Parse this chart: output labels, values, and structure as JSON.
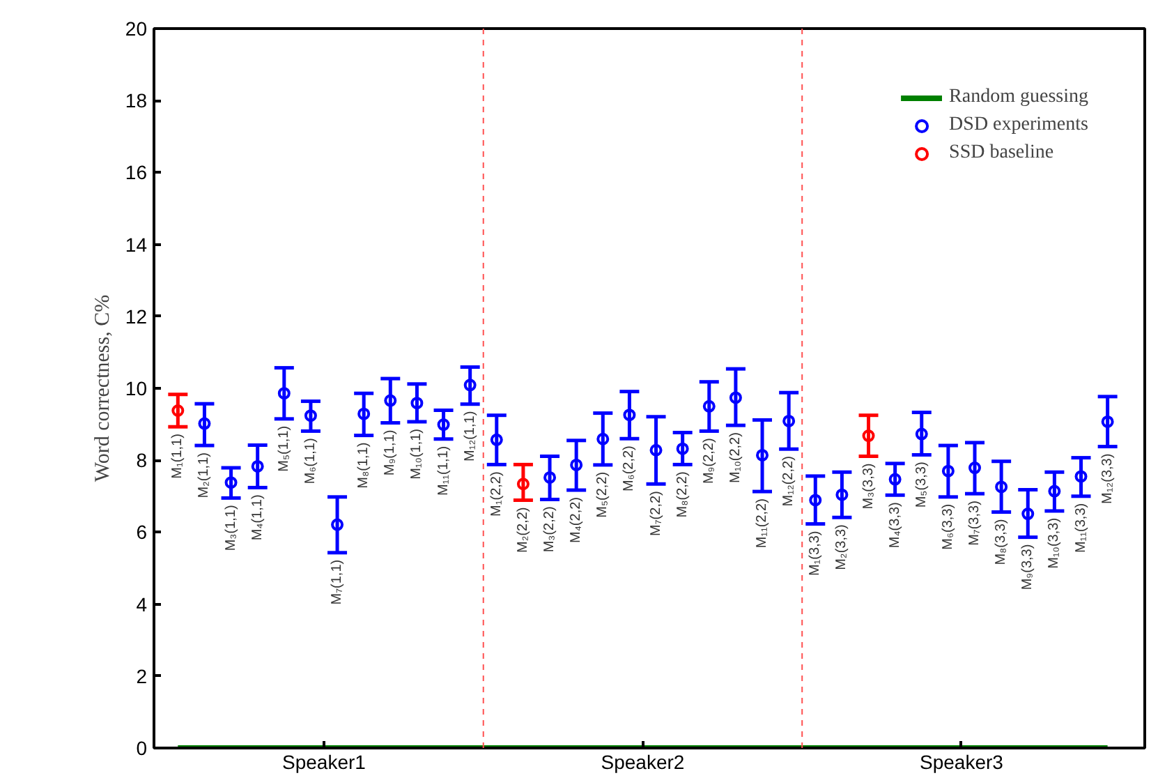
{
  "chart_data": {
    "type": "scatter",
    "ylabel": "Word correctness, C%",
    "categories": [
      null,
      null,
      null,
      null,
      null,
      null,
      null,
      null,
      null,
      null,
      null,
      null,
      null,
      null,
      null,
      null,
      null,
      null,
      null,
      null,
      null,
      null,
      null,
      null,
      null,
      null,
      null,
      null,
      null,
      null,
      null,
      null,
      null,
      null,
      null,
      null
    ],
    "ylim": [
      0,
      20
    ],
    "yticks": [
      0,
      2,
      4,
      6,
      8,
      10,
      12,
      14,
      16,
      18,
      20
    ],
    "series": [
      {
        "name": "Random guessing",
        "type": "line",
        "color": "#008000",
        "values": [
          0,
          0,
          0,
          0,
          0,
          0,
          0,
          0,
          0,
          0,
          0,
          0,
          0,
          0,
          0,
          0,
          0,
          0,
          0,
          0,
          0,
          0,
          0,
          0,
          0,
          0,
          0,
          0,
          0,
          0,
          0,
          0,
          0,
          0,
          0,
          0
        ]
      },
      {
        "name": "DSD experiments",
        "color": "#0000ff",
        "marker": "circle",
        "values": [
          null,
          9.02,
          7.38,
          7.83,
          9.86,
          9.24,
          6.21,
          9.29,
          9.66,
          9.59,
          8.99,
          10.09,
          8.57,
          null,
          7.52,
          7.87,
          8.59,
          9.26,
          8.28,
          8.32,
          9.5,
          9.74,
          8.14,
          9.09,
          6.89,
          7.04,
          null,
          7.47,
          8.73,
          7.7,
          7.79,
          7.26,
          6.51,
          7.14,
          7.55,
          9.07
        ],
        "errors": [
          null,
          [
            8.41,
            9.57
          ],
          [
            6.95,
            7.79
          ],
          [
            7.24,
            8.42
          ],
          [
            9.15,
            10.57
          ],
          [
            8.81,
            9.64
          ],
          [
            5.43,
            6.98
          ],
          [
            8.69,
            9.86
          ],
          [
            9.04,
            10.27
          ],
          [
            9.07,
            10.12
          ],
          [
            8.59,
            9.39
          ],
          [
            9.56,
            10.59
          ],
          [
            7.88,
            9.25
          ],
          null,
          [
            6.91,
            8.11
          ],
          [
            7.17,
            8.55
          ],
          [
            7.87,
            9.31
          ],
          [
            8.6,
            9.91
          ],
          [
            7.34,
            9.21
          ],
          [
            7.88,
            8.77
          ],
          [
            8.81,
            10.18
          ],
          [
            8.97,
            10.54
          ],
          [
            7.13,
            9.12
          ],
          [
            8.31,
            9.88
          ],
          [
            6.23,
            7.56
          ],
          [
            6.41,
            7.67
          ],
          null,
          [
            7.03,
            7.91
          ],
          [
            8.15,
            9.33
          ],
          [
            6.98,
            8.41
          ],
          [
            7.07,
            8.49
          ],
          [
            6.56,
            7.97
          ],
          [
            5.86,
            7.18
          ],
          [
            6.59,
            7.67
          ],
          [
            7.0,
            8.07
          ],
          [
            8.38,
            9.77
          ]
        ]
      },
      {
        "name": "SSD baseline",
        "color": "#ff0000",
        "marker": "circle",
        "values": [
          9.38,
          null,
          null,
          null,
          null,
          null,
          null,
          null,
          null,
          null,
          null,
          null,
          null,
          7.34,
          null,
          null,
          null,
          null,
          null,
          null,
          null,
          null,
          null,
          null,
          null,
          null,
          8.68,
          null,
          null,
          null,
          null,
          null,
          null,
          null,
          null,
          null
        ],
        "errors": [
          [
            8.93,
            9.83
          ],
          null,
          null,
          null,
          null,
          null,
          null,
          null,
          null,
          null,
          null,
          null,
          null,
          [
            6.89,
            7.88
          ],
          null,
          null,
          null,
          null,
          null,
          null,
          null,
          null,
          null,
          null,
          null,
          null,
          [
            8.11,
            9.25
          ],
          null,
          null,
          null,
          null,
          null,
          null,
          null,
          null,
          null
        ]
      }
    ],
    "annotations": [
      "M₁(1,1)",
      "M₂(1,1)",
      "M₃(1,1)",
      "M₄(1,1)",
      "M₅(1,1)",
      "M₆(1,1)",
      "M₇(1,1)",
      "M₈(1,1)",
      "M₉(1,1)",
      "M₁₀(1,1)",
      "M₁₁(1,1)",
      "M₁₂(1,1)",
      "M₁(2,2)",
      "M₂(2,2)",
      "M₃(2,2)",
      "M₄(2,2)",
      "M₅(2,2)",
      "M₆(2,2)",
      "M₇(2,2)",
      "M₈(2,2)",
      "M₉(2,2)",
      "M₁₀(2,2)",
      "M₁₁(2,2)",
      "M₁₂(2,2)",
      "M₁(3,3)",
      "M₂(3,3)",
      "M₃(3,3)",
      "M₄(3,3)",
      "M₅(3,3)",
      "M₆(3,3)",
      "M₇(3,3)",
      "M₈(3,3)",
      "M₉(3,3)",
      "M₁₀(3,3)",
      "M₁₁(3,3)",
      "M₁₂(3,3)",
      "Speaker1",
      "Speaker2",
      "Speaker3"
    ],
    "grid": false,
    "legend": "top right"
  }
}
